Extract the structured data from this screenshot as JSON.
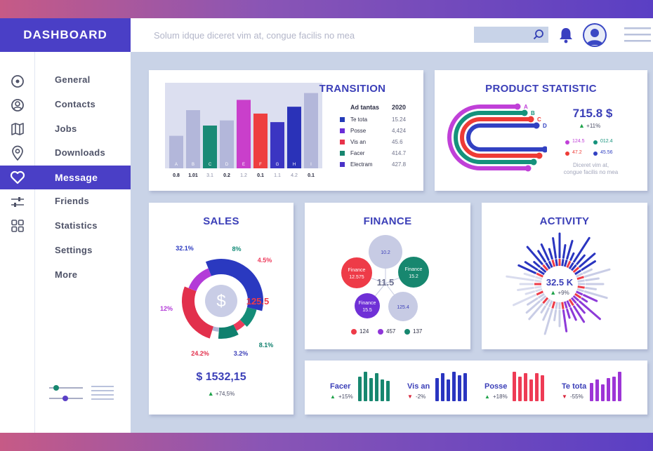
{
  "header": {
    "app_title": "DASHBOARD",
    "tagline": "Solum idque diceret vim at, congue facilis no mea"
  },
  "sidebar": {
    "items": [
      {
        "label": "General"
      },
      {
        "label": "Contacts"
      },
      {
        "label": "Jobs"
      },
      {
        "label": "Downloads"
      },
      {
        "label": "Message"
      },
      {
        "label": "Friends"
      },
      {
        "label": "Statistics"
      },
      {
        "label": "Settings"
      },
      {
        "label": "More"
      }
    ],
    "active": "Message",
    "rail_icons": [
      "target-icon",
      "user-icon",
      "map-icon",
      "location-pin-icon",
      "heart-icon",
      "sliders-icon",
      "grid-icon"
    ]
  },
  "transition": {
    "title": "TRANSITION",
    "table_headers": [
      "Ad tantas",
      "2020"
    ],
    "rows": [
      {
        "label": "Te tota",
        "value": "15.24",
        "color": "#233bb8"
      },
      {
        "label": "Posse",
        "value": "4,424",
        "color": "#6a2ed8"
      },
      {
        "label": "Vis an",
        "value": "45.6",
        "color": "#e8334a"
      },
      {
        "label": "Facer",
        "value": "414.7",
        "color": "#17866f"
      },
      {
        "label": "Electram",
        "value": "427.8",
        "color": "#4a33c8"
      }
    ],
    "chart_data": {
      "type": "bar",
      "categories": [
        "A",
        "B",
        "C",
        "D",
        "E",
        "F",
        "G",
        "H",
        "I"
      ],
      "values": [
        38,
        68,
        50,
        56,
        80,
        64,
        54,
        72,
        88
      ],
      "value_labels": [
        "0.8",
        "1.01",
        "3.1",
        "0.2",
        "1.2",
        "0.1",
        "1.1",
        "4.2",
        "0.1"
      ],
      "colors": [
        "#b3b7da",
        "#b3b7da",
        "#1a8a76",
        "#b3b7da",
        "#c93fcb",
        "#ee3f40",
        "#3b35c2",
        "#2a32b8",
        "#b3b7da"
      ],
      "ylim": [
        0,
        100
      ]
    }
  },
  "product": {
    "title": "PRODUCT STATISTIC",
    "big_value": "715.8 $",
    "change": "+11%",
    "arc_labels": [
      "A",
      "B",
      "C",
      "D"
    ],
    "arc_colors": [
      "#c040d8",
      "#15927c",
      "#ee3b36",
      "#3241c2"
    ],
    "stats": [
      {
        "value": "124.5",
        "color": "#c040d8"
      },
      {
        "value": "012.4",
        "color": "#15927c"
      },
      {
        "value": "47.2",
        "color": "#ee3b36"
      },
      {
        "value": "45.56",
        "color": "#3241c2"
      }
    ],
    "caption_line1": "Diceret vim at,",
    "caption_line2": "congue facilis no mea"
  },
  "sales": {
    "title": "SALES",
    "center_value": "125.5",
    "center_icon": "dollar-icon",
    "total_value": "$ 1532,15",
    "change": "+74,5%",
    "chart_data": {
      "type": "pie",
      "labels": [
        "32.1%",
        "8%",
        "4.5%",
        "8.1%",
        "3.2%",
        "24.2%",
        "12%"
      ],
      "values": [
        32.1,
        8,
        4.5,
        8.1,
        3.2,
        24.2,
        12
      ],
      "colors": [
        "#2a39c0",
        "#148c78",
        "#ee3b5c",
        "#10806e",
        "#b2b6d6",
        "#e2304c",
        "#b33bd8"
      ]
    }
  },
  "finance": {
    "title": "FINANCE",
    "center_value": "11.5",
    "bubbles": [
      {
        "line1": "",
        "line2": "10.2",
        "color": "#c7cbe4",
        "textcolor": "#3b3fb8"
      },
      {
        "line1": "Finance",
        "line2": "12.575",
        "color": "#ee3b48",
        "textcolor": "#ffffff"
      },
      {
        "line1": "Finance",
        "line2": "15.2",
        "color": "#17876f",
        "textcolor": "#ffffff"
      },
      {
        "line1": "Finance",
        "line2": "15.5",
        "color": "#6f30d6",
        "textcolor": "#ffffff"
      },
      {
        "line1": "",
        "line2": "125.4",
        "color": "#c7cbe4",
        "textcolor": "#3b3fb8"
      }
    ],
    "legend": [
      {
        "value": "124",
        "color": "#ee3b48"
      },
      {
        "value": "457",
        "color": "#8f35d8"
      },
      {
        "value": "137",
        "color": "#17876f"
      }
    ]
  },
  "activity": {
    "title": "ACTIVITY",
    "value": "32.5 K",
    "change": "+9%"
  },
  "mini": [
    {
      "label": "Facer",
      "change": "+15%",
      "trend": "up",
      "color": "#17876f",
      "bars": [
        0.8,
        0.95,
        0.75,
        0.9,
        0.7,
        0.65
      ]
    },
    {
      "label": "Vis an",
      "change": "-2%",
      "trend": "down",
      "color": "#2a35c0",
      "bars": [
        0.75,
        0.9,
        0.7,
        0.95,
        0.85,
        0.9
      ]
    },
    {
      "label": "Posse",
      "change": "+18%",
      "trend": "up",
      "color": "#ee3b55",
      "bars": [
        0.95,
        0.8,
        0.9,
        0.7,
        0.9,
        0.85
      ]
    },
    {
      "label": "Te tota",
      "change": "-55%",
      "trend": "down",
      "color": "#9d35d6",
      "bars": [
        0.6,
        0.7,
        0.55,
        0.75,
        0.8,
        0.95
      ]
    }
  ],
  "colors": {
    "accent": "#4a3fc6",
    "up": "#1fa34a",
    "down": "#d8243a"
  }
}
